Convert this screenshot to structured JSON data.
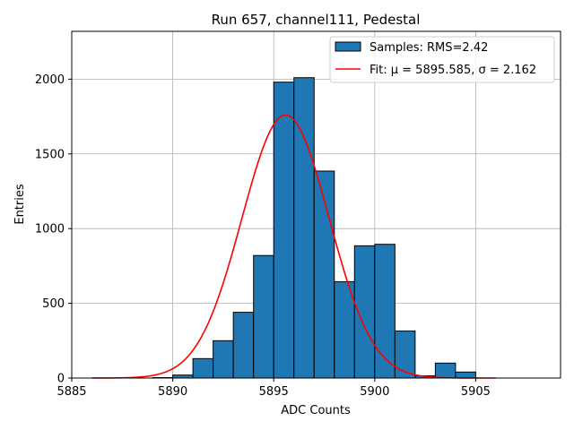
{
  "chart_data": {
    "type": "bar",
    "title": "Run 657, channel111, Pedestal",
    "xlabel": "ADC Counts",
    "ylabel": "Entries",
    "xlim": [
      5885,
      5909.2
    ],
    "ylim": [
      0,
      2320
    ],
    "xticks": [
      5885,
      5890,
      5895,
      5900,
      5905
    ],
    "yticks": [
      0,
      500,
      1000,
      1500,
      2000
    ],
    "grid": true,
    "legend_position": "top-right",
    "bin_width": 1,
    "bins": [
      {
        "x": 5889,
        "value": 3
      },
      {
        "x": 5890,
        "value": 20
      },
      {
        "x": 5891,
        "value": 130
      },
      {
        "x": 5892,
        "value": 250
      },
      {
        "x": 5893,
        "value": 440
      },
      {
        "x": 5894,
        "value": 820
      },
      {
        "x": 5895,
        "value": 1980
      },
      {
        "x": 5896,
        "value": 2010
      },
      {
        "x": 5897,
        "value": 1385
      },
      {
        "x": 5898,
        "value": 645
      },
      {
        "x": 5899,
        "value": 885
      },
      {
        "x": 5900,
        "value": 895
      },
      {
        "x": 5901,
        "value": 315
      },
      {
        "x": 5902,
        "value": 15
      },
      {
        "x": 5903,
        "value": 100
      },
      {
        "x": 5904,
        "value": 40
      }
    ],
    "fit": {
      "mu": 5895.585,
      "sigma": 2.162,
      "amplitude": 1760,
      "xrange": [
        5886,
        5906
      ]
    },
    "series": [
      {
        "name": "Samples: RMS=2.42",
        "kind": "histogram",
        "color": "#1f77b4"
      },
      {
        "name": "Fit: μ = 5895.585, σ = 2.162",
        "kind": "line",
        "color": "#ff0000"
      }
    ]
  }
}
